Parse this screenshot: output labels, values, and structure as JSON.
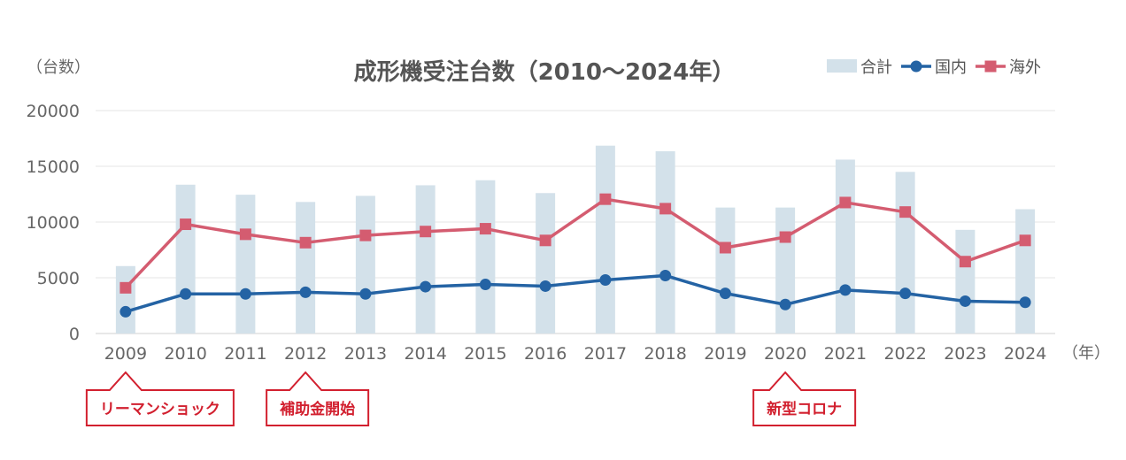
{
  "chart_data": {
    "type": "bar+line",
    "title": "成形機受注台数（2010～2024年）",
    "y_unit_label": "（台数）",
    "x_unit_label": "（年）",
    "categories": [
      "2009",
      "2010",
      "2011",
      "2012",
      "2013",
      "2014",
      "2015",
      "2016",
      "2017",
      "2018",
      "2019",
      "2020",
      "2021",
      "2022",
      "2023",
      "2024"
    ],
    "ylim": [
      0,
      20000
    ],
    "yticks": [
      0,
      5000,
      10000,
      15000,
      20000
    ],
    "grid": true,
    "legend_position": "top-right",
    "series": [
      {
        "name": "合計",
        "type": "bar",
        "color": "#d3e1ea",
        "values": [
          6050,
          13350,
          12450,
          11800,
          12350,
          13300,
          13750,
          12600,
          16850,
          16350,
          11300,
          11300,
          15600,
          14500,
          9300,
          11150
        ]
      },
      {
        "name": "国内",
        "type": "line",
        "marker": "circle",
        "color": "#2463a4",
        "values": [
          1950,
          3550,
          3550,
          3700,
          3550,
          4200,
          4400,
          4250,
          4800,
          5200,
          3600,
          2600,
          3900,
          3600,
          2900,
          2800
        ]
      },
      {
        "name": "海外",
        "type": "line",
        "marker": "square",
        "color": "#d45c70",
        "values": [
          4100,
          9800,
          8900,
          8150,
          8800,
          9150,
          9400,
          8350,
          12050,
          11200,
          7700,
          8650,
          11750,
          10900,
          6450,
          8350
        ]
      }
    ],
    "annotations": [
      {
        "label": "リーマンショック",
        "category": "2009",
        "color": "#d2202f"
      },
      {
        "label": "補助金開始",
        "category": "2012",
        "color": "#d2202f"
      },
      {
        "label": "新型コロナ",
        "category": "2020",
        "color": "#d2202f"
      }
    ]
  }
}
